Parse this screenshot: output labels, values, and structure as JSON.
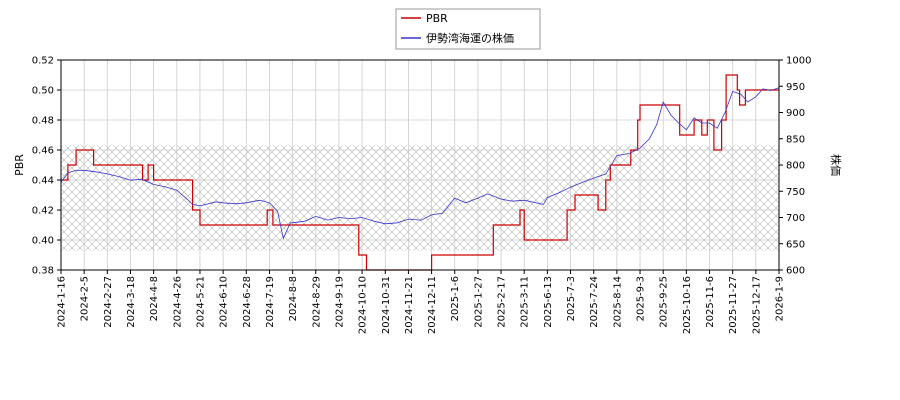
{
  "chart_data": {
    "type": "line",
    "legend": {
      "placement": "top-center",
      "entries": [
        {
          "name": "PBR",
          "color": "#cc0000"
        },
        {
          "name": "伊勢湾海運の株価",
          "color": "#3333cc"
        }
      ]
    },
    "y_left": {
      "label": "PBR",
      "range": [
        0.38,
        0.52
      ],
      "ticks": [
        "0.38",
        "0.40",
        "0.42",
        "0.44",
        "0.46",
        "0.48",
        "0.50",
        "0.52"
      ]
    },
    "y_right": {
      "label": "株価",
      "range": [
        600,
        1000
      ],
      "ticks": [
        "600",
        "650",
        "700",
        "750",
        "800",
        "850",
        "900",
        "950",
        "1000"
      ]
    },
    "x_range": [
      "2024-01-16",
      "2026-01-09"
    ],
    "x_ticks": [
      "2024-1-16",
      "2024-2-5",
      "2024-2-27",
      "2024-3-18",
      "2024-4-8",
      "2024-4-26",
      "2024-5-21",
      "2024-6-10",
      "2024-6-28",
      "2024-7-19",
      "2024-8-8",
      "2024-8-29",
      "2024-9-19",
      "2024-10-10",
      "2024-10-31",
      "2024-11-21",
      "2024-12-11",
      "2025-1-6",
      "2025-1-27",
      "2025-2-17",
      "2025-3-11",
      "2025-6-13",
      "2025-7-3",
      "2025-7-24",
      "2025-8-14",
      "2025-9-3",
      "2025-9-25",
      "2025-10-16",
      "2025-11-6",
      "2025-11-27",
      "2025-12-17",
      "2026-1-9"
    ],
    "shaded_band": {
      "axis": "y_left",
      "range": [
        0.393,
        0.463
      ],
      "pattern": "crosshatch"
    },
    "grid": true,
    "series": [
      {
        "name": "PBR",
        "axis": "y_left",
        "color": "#cc0000",
        "step": true,
        "points": [
          [
            "2024-01-16",
            0.44
          ],
          [
            "2024-01-22",
            0.45
          ],
          [
            "2024-01-29",
            0.46
          ],
          [
            "2024-02-14",
            0.45
          ],
          [
            "2024-03-29",
            0.44
          ],
          [
            "2024-04-03",
            0.45
          ],
          [
            "2024-04-08",
            0.44
          ],
          [
            "2024-05-13",
            0.42
          ],
          [
            "2024-05-21",
            0.41
          ],
          [
            "2024-07-17",
            0.42
          ],
          [
            "2024-07-22",
            0.41
          ],
          [
            "2024-10-07",
            0.39
          ],
          [
            "2024-10-14",
            0.38
          ],
          [
            "2024-12-09",
            0.38
          ],
          [
            "2024-12-11",
            0.39
          ],
          [
            "2025-02-10",
            0.41
          ],
          [
            "2025-03-07",
            0.42
          ],
          [
            "2025-03-11",
            0.4
          ],
          [
            "2025-06-30",
            0.42
          ],
          [
            "2025-07-07",
            0.43
          ],
          [
            "2025-07-28",
            0.42
          ],
          [
            "2025-08-04",
            0.44
          ],
          [
            "2025-08-08",
            0.45
          ],
          [
            "2025-08-26",
            0.46
          ],
          [
            "2025-09-01",
            0.48
          ],
          [
            "2025-09-03",
            0.49
          ],
          [
            "2025-10-10",
            0.47
          ],
          [
            "2025-10-23",
            0.48
          ],
          [
            "2025-10-30",
            0.47
          ],
          [
            "2025-11-04",
            0.48
          ],
          [
            "2025-11-10",
            0.46
          ],
          [
            "2025-11-17",
            0.48
          ],
          [
            "2025-11-21",
            0.51
          ],
          [
            "2025-12-01",
            0.5
          ],
          [
            "2025-12-03",
            0.49
          ],
          [
            "2025-12-08",
            0.5
          ],
          [
            "2025-12-22",
            0.5
          ],
          [
            "2026-01-09",
            0.5
          ]
        ]
      },
      {
        "name": "伊勢湾海運の株価",
        "axis": "y_right",
        "color": "#3333cc",
        "step": false,
        "points": [
          [
            "2024-01-16",
            767
          ],
          [
            "2024-01-22",
            785
          ],
          [
            "2024-01-29",
            790
          ],
          [
            "2024-02-05",
            790
          ],
          [
            "2024-02-16",
            787
          ],
          [
            "2024-02-27",
            783
          ],
          [
            "2024-03-08",
            778
          ],
          [
            "2024-03-18",
            771
          ],
          [
            "2024-03-28",
            773
          ],
          [
            "2024-04-08",
            763
          ],
          [
            "2024-04-18",
            758
          ],
          [
            "2024-04-26",
            752
          ],
          [
            "2024-05-07",
            735
          ],
          [
            "2024-05-13",
            725
          ],
          [
            "2024-05-21",
            722
          ],
          [
            "2024-06-04",
            730
          ],
          [
            "2024-06-10",
            728
          ],
          [
            "2024-06-20",
            726
          ],
          [
            "2024-06-28",
            728
          ],
          [
            "2024-07-10",
            733
          ],
          [
            "2024-07-19",
            728
          ],
          [
            "2024-07-26",
            712
          ],
          [
            "2024-07-31",
            660
          ],
          [
            "2024-08-06",
            690
          ],
          [
            "2024-08-08",
            690
          ],
          [
            "2024-08-19",
            693
          ],
          [
            "2024-08-29",
            702
          ],
          [
            "2024-09-09",
            695
          ],
          [
            "2024-09-19",
            700
          ],
          [
            "2024-09-30",
            698
          ],
          [
            "2024-10-10",
            700
          ],
          [
            "2024-10-21",
            693
          ],
          [
            "2024-10-31",
            688
          ],
          [
            "2024-11-11",
            690
          ],
          [
            "2024-11-21",
            697
          ],
          [
            "2024-12-02",
            695
          ],
          [
            "2024-12-11",
            705
          ],
          [
            "2024-12-23",
            708
          ],
          [
            "2025-01-06",
            737
          ],
          [
            "2025-01-16",
            728
          ],
          [
            "2025-01-27",
            737
          ],
          [
            "2025-02-05",
            745
          ],
          [
            "2025-02-17",
            735
          ],
          [
            "2025-02-28",
            731
          ],
          [
            "2025-03-11",
            733
          ],
          [
            "2025-05-28",
            725
          ],
          [
            "2025-06-13",
            738
          ],
          [
            "2025-06-24",
            748
          ],
          [
            "2025-07-03",
            758
          ],
          [
            "2025-07-14",
            767
          ],
          [
            "2025-07-24",
            775
          ],
          [
            "2025-08-04",
            783
          ],
          [
            "2025-08-14",
            818
          ],
          [
            "2025-08-25",
            822
          ],
          [
            "2025-09-03",
            832
          ],
          [
            "2025-09-12",
            850
          ],
          [
            "2025-09-19",
            878
          ],
          [
            "2025-09-25",
            920
          ],
          [
            "2025-10-02",
            895
          ],
          [
            "2025-10-09",
            880
          ],
          [
            "2025-10-16",
            867
          ],
          [
            "2025-10-23",
            890
          ],
          [
            "2025-10-30",
            880
          ],
          [
            "2025-11-06",
            880
          ],
          [
            "2025-11-13",
            870
          ],
          [
            "2025-11-20",
            900
          ],
          [
            "2025-11-27",
            940
          ],
          [
            "2025-12-04",
            935
          ],
          [
            "2025-12-10",
            920
          ],
          [
            "2025-12-17",
            930
          ],
          [
            "2025-12-24",
            945
          ],
          [
            "2026-01-01",
            942
          ],
          [
            "2026-01-09",
            947
          ]
        ]
      }
    ]
  }
}
